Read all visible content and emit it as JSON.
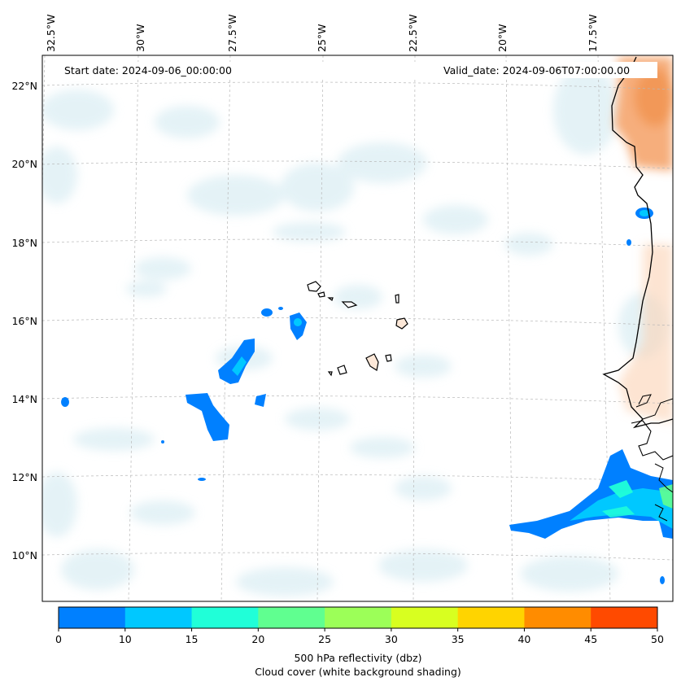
{
  "header": {
    "start_date": "Start date: 2024-09-06_00:00:00",
    "valid_date": "Valid_date: 2024-09-06T07:00:00.00"
  },
  "map": {
    "lon_labels": [
      "32.5°W",
      "30°W",
      "27.5°W",
      "25°W",
      "22.5°W",
      "20°W",
      "17.5°W"
    ],
    "lat_labels": [
      "22°N",
      "20°N",
      "18°N",
      "16°N",
      "14°N",
      "12°N",
      "10°N"
    ]
  },
  "colorbar": {
    "ticks": [
      "0",
      "10",
      "15",
      "20",
      "25",
      "30",
      "35",
      "40",
      "45",
      "50"
    ],
    "colors": [
      "#0080ff",
      "#00c8ff",
      "#20ffd8",
      "#60ff90",
      "#9cff58",
      "#d8ff20",
      "#ffd400",
      "#ff8c00",
      "#ff4a00"
    ],
    "label_line1": "500 hPa reflectivity (dbz)",
    "label_line2": "Cloud cover (white background shading)"
  }
}
